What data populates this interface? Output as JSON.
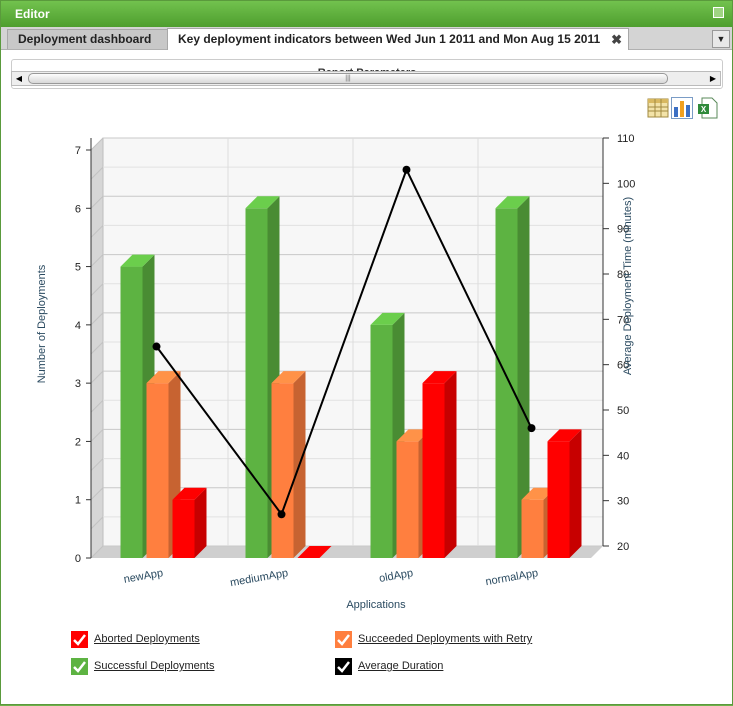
{
  "window": {
    "title": "Editor"
  },
  "tabs": [
    {
      "label": "Deployment dashboard"
    },
    {
      "label": "Key deployment indicators between Wed Jun 1 2011 and Mon Aug 15 2011",
      "close": "✖"
    }
  ],
  "params": {
    "title": "Report Parameters"
  },
  "toolbar": {
    "icons": [
      "table-icon",
      "bar-chart-icon",
      "excel-icon"
    ]
  },
  "colors": {
    "green": "#5db342",
    "orange": "#ff7f3f",
    "red": "#ff0000",
    "black": "#000000"
  },
  "chart_data": {
    "type": "bar",
    "categories": [
      "newApp",
      "mediumApp",
      "oldApp",
      "normalApp"
    ],
    "series": [
      {
        "name": "Successful Deployments",
        "values": [
          5,
          6,
          4,
          6
        ],
        "color": "#5db342"
      },
      {
        "name": "Succeeded Deployments with Retry",
        "values": [
          3,
          3,
          2,
          1
        ],
        "color": "#ff7f3f"
      },
      {
        "name": "Aborted Deployments",
        "values": [
          1,
          0,
          3,
          2
        ],
        "color": "#ff0000"
      }
    ],
    "line_series": {
      "name": "Average Duration",
      "values": [
        64,
        27,
        103,
        46
      ],
      "color": "#000000"
    },
    "xlabel": "Applications",
    "ylabel": "Number of Deployments",
    "y2label": "Average Deployment Time (minutes)",
    "ylim": [
      0,
      7
    ],
    "y2lim": [
      20,
      110
    ],
    "yticks": [
      0,
      1,
      2,
      3,
      4,
      5,
      6,
      7
    ],
    "y2ticks": [
      20,
      30,
      40,
      50,
      60,
      70,
      80,
      90,
      100,
      110
    ],
    "grid": true,
    "legend": [
      {
        "label": "Aborted Deployments",
        "color": "#ff0000"
      },
      {
        "label": "Succeeded Deployments with Retry",
        "color": "#ff7f3f"
      },
      {
        "label": "Successful Deployments",
        "color": "#5db342"
      },
      {
        "label": "Average Duration",
        "color": "#000000"
      }
    ],
    "legend_position": "bottom"
  }
}
